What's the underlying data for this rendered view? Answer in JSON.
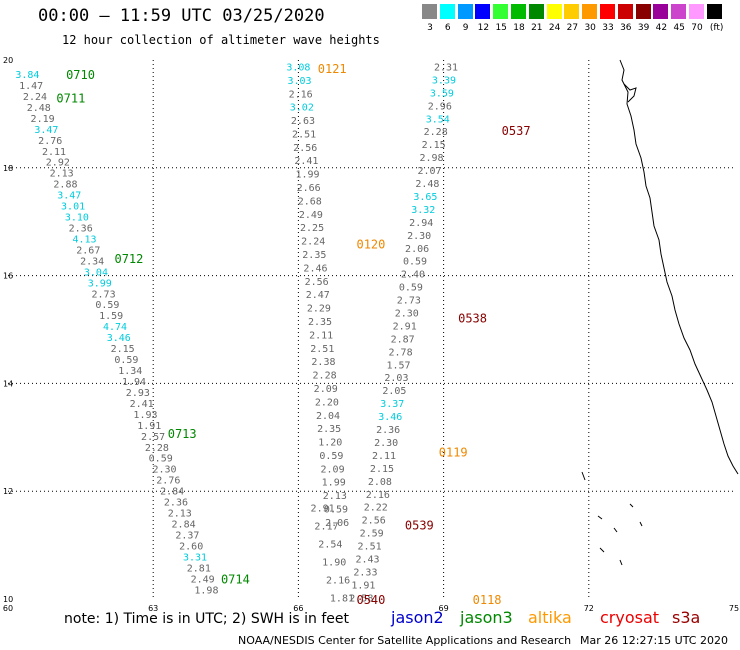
{
  "header": {
    "title": "00:00 – 11:59 UTC 03/25/2020",
    "subtitle": "12 hour collection of altimeter wave heights"
  },
  "legend": {
    "unit": "(ft)",
    "bins": [
      {
        "label": "3",
        "color": "#888888"
      },
      {
        "label": "6",
        "color": "#00ffff"
      },
      {
        "label": "9",
        "color": "#0099ff"
      },
      {
        "label": "12",
        "color": "#0000ff"
      },
      {
        "label": "15",
        "color": "#33ff33"
      },
      {
        "label": "18",
        "color": "#00bb00"
      },
      {
        "label": "21",
        "color": "#008800"
      },
      {
        "label": "24",
        "color": "#ffff00"
      },
      {
        "label": "27",
        "color": "#ffcc00"
      },
      {
        "label": "30",
        "color": "#ff9900"
      },
      {
        "label": "33",
        "color": "#ff0000"
      },
      {
        "label": "36",
        "color": "#cc0000"
      },
      {
        "label": "39",
        "color": "#880000"
      },
      {
        "label": "42",
        "color": "#990099"
      },
      {
        "label": "45",
        "color": "#cc44cc"
      },
      {
        "label": "70",
        "color": "#ff99ff"
      },
      {
        "label": "",
        "color": "#000000"
      }
    ]
  },
  "map": {
    "lon_ticks": [
      "60",
      "63",
      "66",
      "69",
      "72",
      "75"
    ],
    "lat_ticks": [
      "10",
      "12",
      "14",
      "16",
      "18",
      "20"
    ],
    "lon_range": [
      60,
      75
    ],
    "lat_range": [
      10,
      20
    ],
    "grid_lons": [
      63,
      66,
      69,
      72
    ],
    "grid_lats": [
      12,
      14,
      16,
      18
    ],
    "colors": {
      "gray": "#666666",
      "cyan": "#00ccdd",
      "green": "#008800",
      "orange": "#ee8800",
      "darkred": "#880000"
    },
    "tracks": [
      {
        "lon0": 60.4,
        "lat0": 19.74,
        "lon1": 64.1,
        "lat1": 10.18,
        "values": [
          {
            "v": "3.84",
            "c": "cyan"
          },
          {
            "v": "1.47",
            "c": "gray"
          },
          {
            "v": "2.24",
            "c": "gray"
          },
          {
            "v": "2.48",
            "c": "gray"
          },
          {
            "v": "2.19",
            "c": "gray"
          },
          {
            "v": "3.47",
            "c": "cyan"
          },
          {
            "v": "2.76",
            "c": "gray"
          },
          {
            "v": "2.11",
            "c": "gray"
          },
          {
            "v": "2.92",
            "c": "gray"
          },
          {
            "v": "2.13",
            "c": "gray"
          },
          {
            "v": "2.88",
            "c": "gray"
          },
          {
            "v": "3.47",
            "c": "cyan"
          },
          {
            "v": "3.01",
            "c": "cyan"
          },
          {
            "v": "3.10",
            "c": "cyan"
          },
          {
            "v": "2.36",
            "c": "gray"
          },
          {
            "v": "4.13",
            "c": "cyan"
          },
          {
            "v": "2.67",
            "c": "gray"
          },
          {
            "v": "2.34",
            "c": "gray"
          },
          {
            "v": "3.04",
            "c": "cyan"
          },
          {
            "v": "3.99",
            "c": "cyan"
          },
          {
            "v": "2.73",
            "c": "gray"
          },
          {
            "v": "0.59",
            "c": "gray"
          },
          {
            "v": "1.59",
            "c": "gray"
          },
          {
            "v": "4.74",
            "c": "cyan"
          },
          {
            "v": "3.46",
            "c": "cyan"
          },
          {
            "v": "2.15",
            "c": "gray"
          },
          {
            "v": "0.59",
            "c": "gray"
          },
          {
            "v": "1.34",
            "c": "gray"
          },
          {
            "v": "1.94",
            "c": "gray"
          },
          {
            "v": "2.93",
            "c": "gray"
          },
          {
            "v": "2.41",
            "c": "gray"
          },
          {
            "v": "1.93",
            "c": "gray"
          },
          {
            "v": "1.91",
            "c": "gray"
          },
          {
            "v": "2.57",
            "c": "gray"
          },
          {
            "v": "2.28",
            "c": "gray"
          },
          {
            "v": "0.59",
            "c": "gray"
          },
          {
            "v": "2.30",
            "c": "gray"
          },
          {
            "v": "2.76",
            "c": "gray"
          },
          {
            "v": "2.84",
            "c": "gray"
          },
          {
            "v": "2.36",
            "c": "gray"
          },
          {
            "v": "2.13",
            "c": "gray"
          },
          {
            "v": "2.84",
            "c": "gray"
          },
          {
            "v": "2.37",
            "c": "gray"
          },
          {
            "v": "2.60",
            "c": "gray"
          },
          {
            "v": "3.31",
            "c": "cyan"
          },
          {
            "v": "2.81",
            "c": "gray"
          },
          {
            "v": "2.49",
            "c": "gray"
          },
          {
            "v": "1.98",
            "c": "gray"
          }
        ]
      },
      {
        "lon0": 66.0,
        "lat0": 19.88,
        "lon1": 66.8,
        "lat1": 11.43,
        "values": [
          {
            "v": "3.08",
            "c": "cyan"
          },
          {
            "v": "3.03",
            "c": "cyan"
          },
          {
            "v": "2.16",
            "c": "gray"
          },
          {
            "v": "3.02",
            "c": "cyan"
          },
          {
            "v": "2.63",
            "c": "gray"
          },
          {
            "v": "2.51",
            "c": "gray"
          },
          {
            "v": "2.56",
            "c": "gray"
          },
          {
            "v": "2.41",
            "c": "gray"
          },
          {
            "v": "1.99",
            "c": "gray"
          },
          {
            "v": "2.66",
            "c": "gray"
          },
          {
            "v": "2.68",
            "c": "gray"
          },
          {
            "v": "2.49",
            "c": "gray"
          },
          {
            "v": "2.25",
            "c": "gray"
          },
          {
            "v": "2.24",
            "c": "gray"
          },
          {
            "v": "2.35",
            "c": "gray"
          },
          {
            "v": "2.46",
            "c": "gray"
          },
          {
            "v": "2.56",
            "c": "gray"
          },
          {
            "v": "2.47",
            "c": "gray"
          },
          {
            "v": "2.29",
            "c": "gray"
          },
          {
            "v": "2.35",
            "c": "gray"
          },
          {
            "v": "2.11",
            "c": "gray"
          },
          {
            "v": "2.51",
            "c": "gray"
          },
          {
            "v": "2.38",
            "c": "gray"
          },
          {
            "v": "2.28",
            "c": "gray"
          },
          {
            "v": "2.09",
            "c": "gray"
          },
          {
            "v": "2.20",
            "c": "gray"
          },
          {
            "v": "2.04",
            "c": "gray"
          },
          {
            "v": "2.35",
            "c": "gray"
          },
          {
            "v": "1.20",
            "c": "gray"
          },
          {
            "v": "0.59",
            "c": "gray"
          },
          {
            "v": "2.09",
            "c": "gray"
          },
          {
            "v": "1.99",
            "c": "gray"
          },
          {
            "v": "2.13",
            "c": "gray"
          },
          {
            "v": "0.59",
            "c": "gray"
          },
          {
            "v": "2.06",
            "c": "gray"
          }
        ]
      },
      {
        "lon0": 66.5,
        "lat0": 11.7,
        "lon1": 66.9,
        "lat1": 10.03,
        "values": [
          {
            "v": "2.91",
            "c": "gray"
          },
          {
            "v": "2.17",
            "c": "gray"
          },
          {
            "v": "2.54",
            "c": "gray"
          },
          {
            "v": "1.90",
            "c": "gray"
          },
          {
            "v": "2.16",
            "c": "gray"
          },
          {
            "v": "1.81",
            "c": "gray"
          }
        ]
      },
      {
        "lon0": 69.05,
        "lat0": 19.88,
        "lon1": 67.3,
        "lat1": 10.03,
        "values": [
          {
            "v": "2.31",
            "c": "gray"
          },
          {
            "v": "3.39",
            "c": "cyan"
          },
          {
            "v": "3.59",
            "c": "cyan"
          },
          {
            "v": "2.96",
            "c": "gray"
          },
          {
            "v": "3.54",
            "c": "cyan"
          },
          {
            "v": "2.28",
            "c": "gray"
          },
          {
            "v": "2.15",
            "c": "gray"
          },
          {
            "v": "2.98",
            "c": "gray"
          },
          {
            "v": "2.07",
            "c": "gray"
          },
          {
            "v": "2.48",
            "c": "gray"
          },
          {
            "v": "3.65",
            "c": "cyan"
          },
          {
            "v": "3.32",
            "c": "cyan"
          },
          {
            "v": "2.94",
            "c": "gray"
          },
          {
            "v": "2.30",
            "c": "gray"
          },
          {
            "v": "2.06",
            "c": "gray"
          },
          {
            "v": "0.59",
            "c": "gray"
          },
          {
            "v": "2.40",
            "c": "gray"
          },
          {
            "v": "0.59",
            "c": "gray"
          },
          {
            "v": "2.73",
            "c": "gray"
          },
          {
            "v": "2.30",
            "c": "gray"
          },
          {
            "v": "2.91",
            "c": "gray"
          },
          {
            "v": "2.87",
            "c": "gray"
          },
          {
            "v": "2.78",
            "c": "gray"
          },
          {
            "v": "1.57",
            "c": "gray"
          },
          {
            "v": "2.03",
            "c": "gray"
          },
          {
            "v": "2.05",
            "c": "gray"
          },
          {
            "v": "3.37",
            "c": "cyan"
          },
          {
            "v": "3.46",
            "c": "cyan"
          },
          {
            "v": "2.36",
            "c": "gray"
          },
          {
            "v": "2.30",
            "c": "gray"
          },
          {
            "v": "2.11",
            "c": "gray"
          },
          {
            "v": "2.15",
            "c": "gray"
          },
          {
            "v": "2.08",
            "c": "gray"
          },
          {
            "v": "2.16",
            "c": "gray"
          },
          {
            "v": "2.22",
            "c": "gray"
          },
          {
            "v": "2.56",
            "c": "gray"
          },
          {
            "v": "2.59",
            "c": "gray"
          },
          {
            "v": "2.51",
            "c": "gray"
          },
          {
            "v": "2.43",
            "c": "gray"
          },
          {
            "v": "2.33",
            "c": "gray"
          },
          {
            "v": "1.91",
            "c": "gray"
          },
          {
            "v": "2.58",
            "c": "gray"
          }
        ]
      }
    ],
    "time_labels": [
      {
        "t": "0710",
        "lon": 61.2,
        "lat": 19.74,
        "c": "green"
      },
      {
        "t": "0711",
        "lon": 61.0,
        "lat": 19.3,
        "c": "green"
      },
      {
        "t": "0712",
        "lon": 62.2,
        "lat": 16.33,
        "c": "green"
      },
      {
        "t": "0713",
        "lon": 63.3,
        "lat": 13.08,
        "c": "green"
      },
      {
        "t": "0714",
        "lon": 64.4,
        "lat": 10.38,
        "c": "green"
      },
      {
        "t": "0121",
        "lon": 66.4,
        "lat": 19.85,
        "c": "orange"
      },
      {
        "t": "0120",
        "lon": 67.2,
        "lat": 16.6,
        "c": "orange"
      },
      {
        "t": "0119",
        "lon": 68.9,
        "lat": 12.74,
        "c": "orange"
      },
      {
        "t": "0118",
        "lon": 69.6,
        "lat": 10.0,
        "c": "orange"
      },
      {
        "t": "0537",
        "lon": 70.2,
        "lat": 18.7,
        "c": "darkred"
      },
      {
        "t": "0538",
        "lon": 69.3,
        "lat": 15.22,
        "c": "darkred"
      },
      {
        "t": "0539",
        "lon": 68.2,
        "lat": 11.38,
        "c": "darkred"
      },
      {
        "t": "0540",
        "lon": 67.2,
        "lat": 10.0,
        "c": "darkred"
      }
    ]
  },
  "footer": {
    "note": "note: 1) Time is in UTC; 2) SWH is in feet",
    "satellites": [
      {
        "name": "jason2",
        "color": "#0000cc"
      },
      {
        "name": "jason3",
        "color": "#008800"
      },
      {
        "name": "altika",
        "color": "#ff9900"
      },
      {
        "name": "cryosat",
        "color": "#ee0000"
      },
      {
        "name": "s3a",
        "color": "#990000"
      }
    ],
    "credit": "NOAA/NESDIS Center for Satellite Applications and Research",
    "timestamp": "Mar 26 12:27:15 UTC 2020"
  }
}
